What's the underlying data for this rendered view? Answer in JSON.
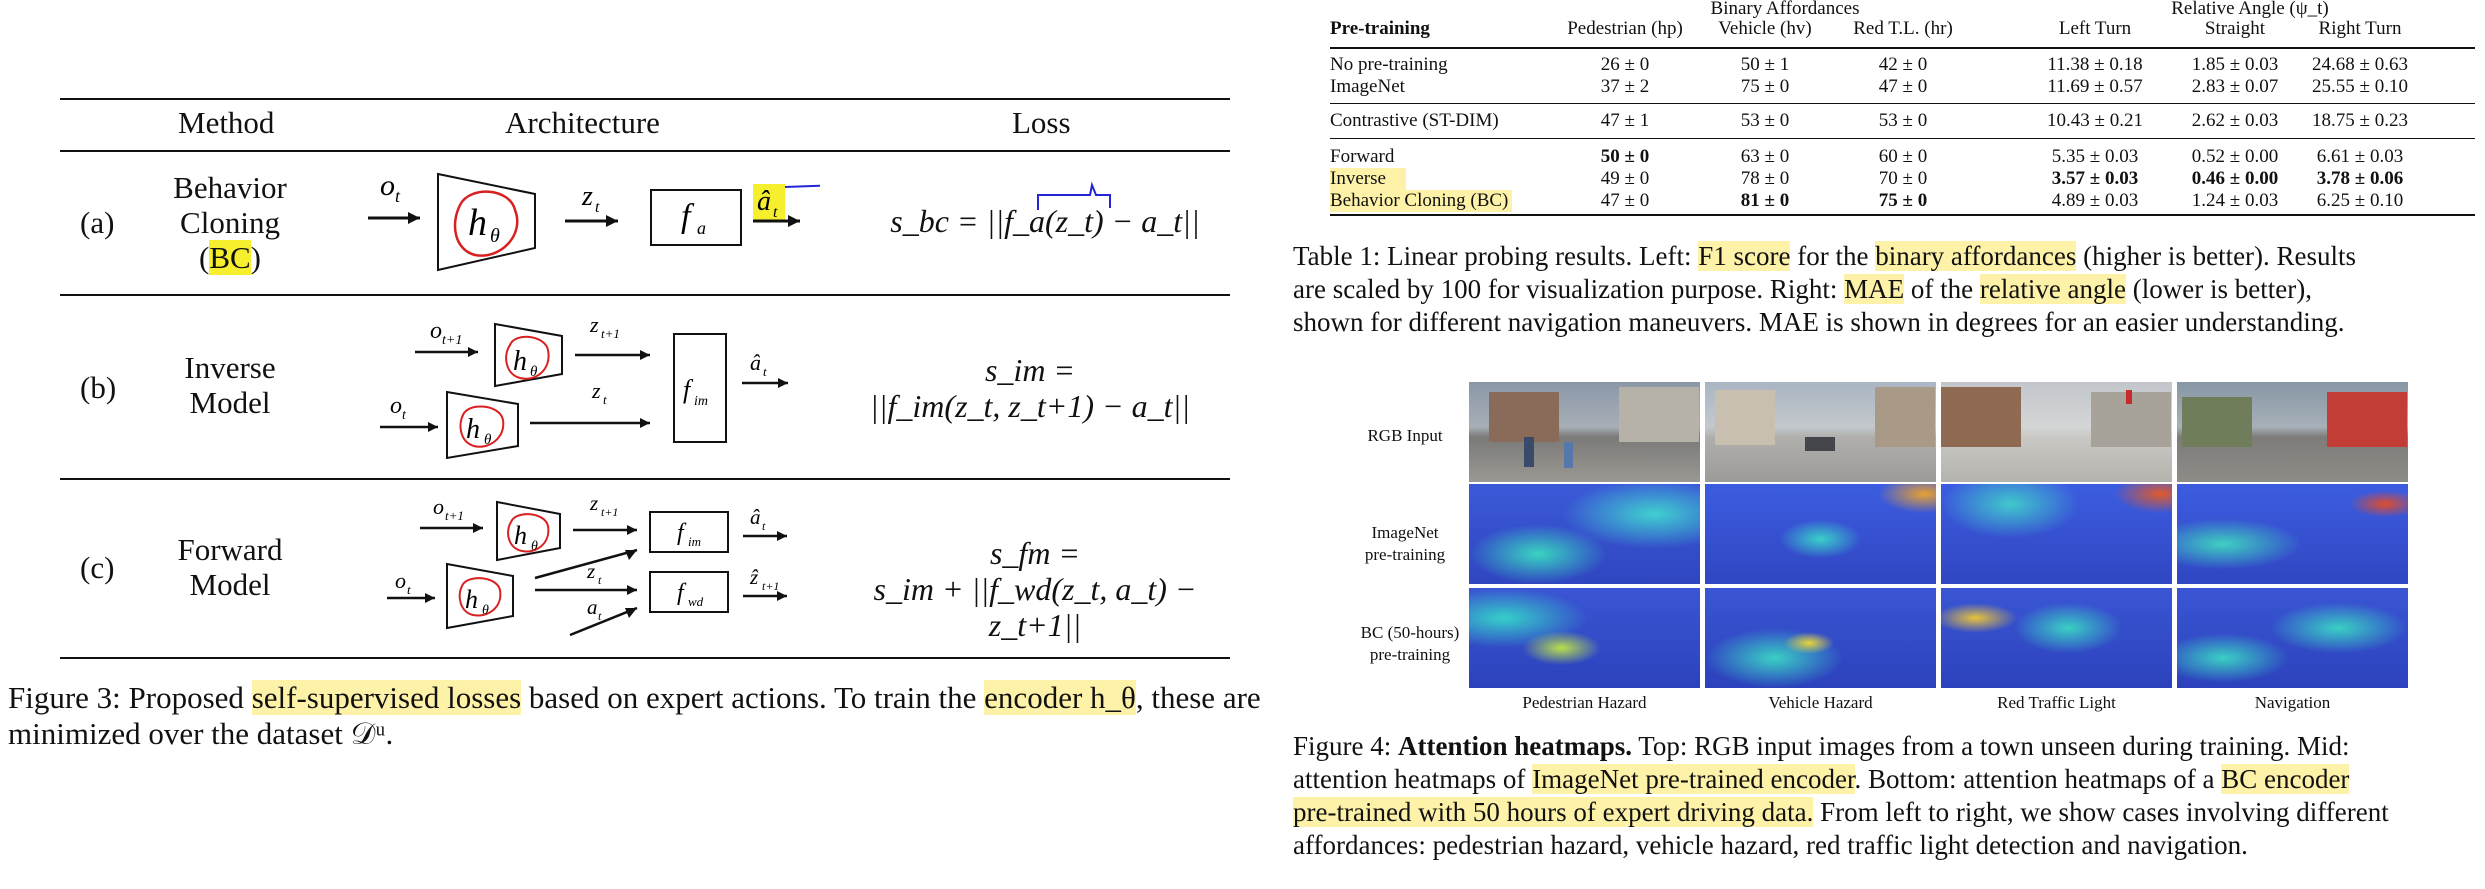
{
  "method_table": {
    "headers": {
      "method": "Method",
      "architecture": "Architecture",
      "loss": "Loss"
    },
    "rows": [
      {
        "label": "(a)",
        "method_lines": [
          "Behavior",
          "Cloning",
          "(BC)"
        ],
        "method_highlight": "BC",
        "loss_lhs": "s_bc = ||f_a(z_t) − a_t||",
        "loss_rhs": ""
      },
      {
        "label": "(b)",
        "method_lines": [
          "Inverse",
          "Model"
        ],
        "loss_lhs": "s_im =",
        "loss_rhs": "||f_im(z_t, z_t+1) − a_t||"
      },
      {
        "label": "(c)",
        "method_lines": [
          "Forward",
          "Model"
        ],
        "loss_lhs": "s_fm =",
        "loss_rhs": "s_im + ||f_wd(z_t, a_t) − z_t+1||"
      }
    ],
    "arch_labels": {
      "o_t": "o_t",
      "o_t1": "o_t+1",
      "z_t": "z_t",
      "z_t1": "z_t+1",
      "h": "h_θ",
      "f_a": "f_a",
      "f_im": "f_im",
      "f_wd": "f_wd",
      "a_hat": "â_t",
      "z_hat": "ẑ_t+1",
      "a_t": "a_t"
    }
  },
  "figure3_caption": {
    "prefix": "Figure 3: Proposed ",
    "hl1": "self-supervised losses",
    "mid": " based on expert actions. To train the ",
    "hl2": "encoder h_θ",
    "suffix": ", these are",
    "line2": "minimized over the dataset 𝒟ᵘ."
  },
  "probing_table": {
    "group_headers": {
      "binary": "Binary Affordances",
      "angle": "Relative Angle (ψ_t)"
    },
    "columns": [
      "Pre-training",
      "Pedestrian (hp)",
      "Vehicle (hv)",
      "Red T.L. (hr)",
      "Left Turn",
      "Straight",
      "Right Turn"
    ],
    "rows": [
      {
        "name": "No pre-training",
        "vals": [
          "26 ± 0",
          "50 ± 1",
          "42 ± 0",
          "11.38 ± 0.18",
          "1.85 ± 0.03",
          "24.68 ± 0.63"
        ]
      },
      {
        "name": "ImageNet",
        "vals": [
          "37 ± 2",
          "75 ± 0",
          "47 ± 0",
          "11.69 ± 0.57",
          "2.83 ± 0.07",
          "25.55 ± 0.10"
        ]
      },
      {
        "name": "Contrastive (ST-DIM)",
        "vals": [
          "47 ± 1",
          "53 ± 0",
          "53 ± 0",
          "10.43 ± 0.21",
          "2.62 ± 0.03",
          "18.75 ± 0.23"
        ]
      },
      {
        "name": "Forward",
        "vals": [
          "50 ± 0",
          "63 ± 0",
          "60 ± 0",
          "5.35 ± 0.03",
          "0.52 ± 0.00",
          "6.61 ± 0.03"
        ]
      },
      {
        "name": "Inverse",
        "vals": [
          "49 ± 0",
          "78 ± 0",
          "70 ± 0",
          "3.57 ± 0.03",
          "0.46 ± 0.00",
          "3.78 ± 0.06"
        ]
      },
      {
        "name": "Behavior Cloning (BC)",
        "vals": [
          "47 ± 0",
          "81 ± 0",
          "75 ± 0",
          "4.89 ± 0.03",
          "1.24 ± 0.03",
          "6.25 ± 0.10"
        ]
      }
    ]
  },
  "table1_caption": {
    "l1_a": "Table 1: Linear probing results. Left: ",
    "l1_hl1": "F1 score",
    "l1_b": " for the ",
    "l1_hl2": "binary affordances",
    "l1_c": " (higher is better). Results",
    "l2_a": "are scaled by 100 for visualization purpose.  Right: ",
    "l2_hl1": "MAE",
    "l2_b": " of the ",
    "l2_hl2": "relative angle",
    "l2_c": " (lower is better),",
    "l3": "shown for different navigation maneuvers. MAE is shown in degrees for an easier understanding."
  },
  "heatmaps": {
    "row_labels": [
      [
        "RGB Input"
      ],
      [
        "ImageNet",
        "pre-training"
      ],
      [
        "BC (50-hours)",
        "pre-training"
      ]
    ],
    "col_labels": [
      "Pedestrian Hazard",
      "Vehicle Hazard",
      "Red Traffic Light",
      "Navigation"
    ]
  },
  "figure4_caption": {
    "l1_a": "Figure 4: ",
    "l1_bold": "Attention heatmaps.",
    "l1_b": " Top: RGB input images from a town unseen during training. Mid:",
    "l2_a": "attention heatmaps of ",
    "l2_hl": "ImageNet pre-trained encoder",
    "l2_b": ". Bottom: attention heatmaps of a ",
    "l2_hl2": "BC encoder",
    "l3_hl": "pre-trained with 50 hours of expert driving data.",
    "l3_b": " From left to right, we show cases involving different",
    "l4": "affordances: pedestrian hazard, vehicle hazard, red traffic light detection and navigation."
  }
}
